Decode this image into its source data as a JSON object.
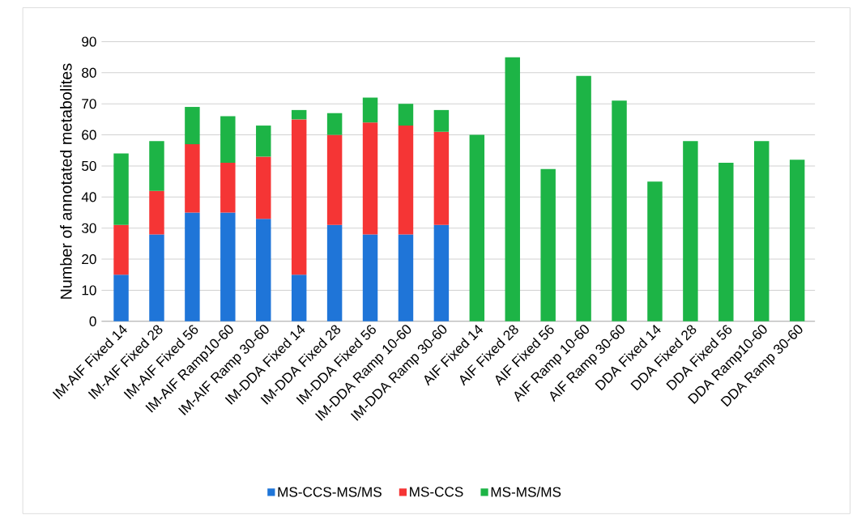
{
  "chart_data": {
    "type": "bar",
    "stacked": true,
    "ylabel": "Number of annotated metabolites",
    "categories": [
      "IM-AIF Fixed 14",
      "IM-AIF Fixed 28",
      "IM-AIF Fixed 56",
      "IM-AIF Ramp10-60",
      "IM-AIF Ramp 30-60",
      "IM-DDA Fixed 14",
      "IM-DDA Fixed 28",
      "IM-DDA Fixed 56",
      "IM-DDA Ramp 10-60",
      "IM-DDA Ramp 30-60",
      "AIF Fixed 14",
      "AIF Fixed 28",
      "AIF Fixed 56",
      "AIF Ramp 10-60",
      "AIF Ramp 30-60",
      "DDA Fixed 14",
      "DDA Fixed 28",
      "DDA Fixed 56",
      "DDA Ramp10-60",
      "DDA Ramp 30-60"
    ],
    "series": [
      {
        "name": "MS-CCS-MS/MS",
        "color": "#1f75d8",
        "values": [
          15,
          28,
          35,
          35,
          33,
          15,
          31,
          28,
          28,
          31,
          null,
          null,
          null,
          null,
          null,
          null,
          null,
          null,
          null,
          null
        ]
      },
      {
        "name": "MS-CCS",
        "color": "#f53535",
        "values": [
          16,
          14,
          22,
          16,
          20,
          50,
          29,
          36,
          35,
          30,
          null,
          null,
          null,
          null,
          null,
          null,
          null,
          null,
          null,
          null
        ]
      },
      {
        "name": "MS-MS/MS",
        "color": "#1db446",
        "values": [
          23,
          16,
          12,
          15,
          10,
          3,
          7,
          8,
          7,
          7,
          60,
          85,
          49,
          79,
          71,
          45,
          58,
          51,
          58,
          52
        ]
      }
    ],
    "ylim": [
      0,
      90
    ],
    "yticks": [
      0,
      10,
      20,
      30,
      40,
      50,
      60,
      70,
      80,
      90
    ],
    "grid": "y",
    "legend": "bottom"
  }
}
